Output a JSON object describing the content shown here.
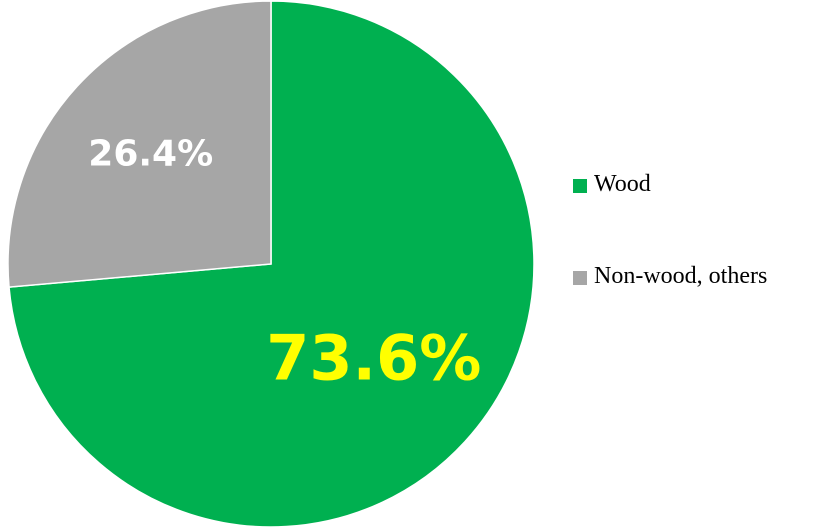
{
  "chart_data": {
    "type": "pie",
    "categories": [
      "Wood",
      "Non-wood, others"
    ],
    "values": [
      73.6,
      26.4
    ],
    "data_labels": [
      "73.6%",
      "26.4%"
    ],
    "colors": [
      "#00B050",
      "#A6A6A6"
    ],
    "label_colors": [
      "#FFFF00",
      "#FFFFFF"
    ],
    "legend_position": "right",
    "title": ""
  }
}
